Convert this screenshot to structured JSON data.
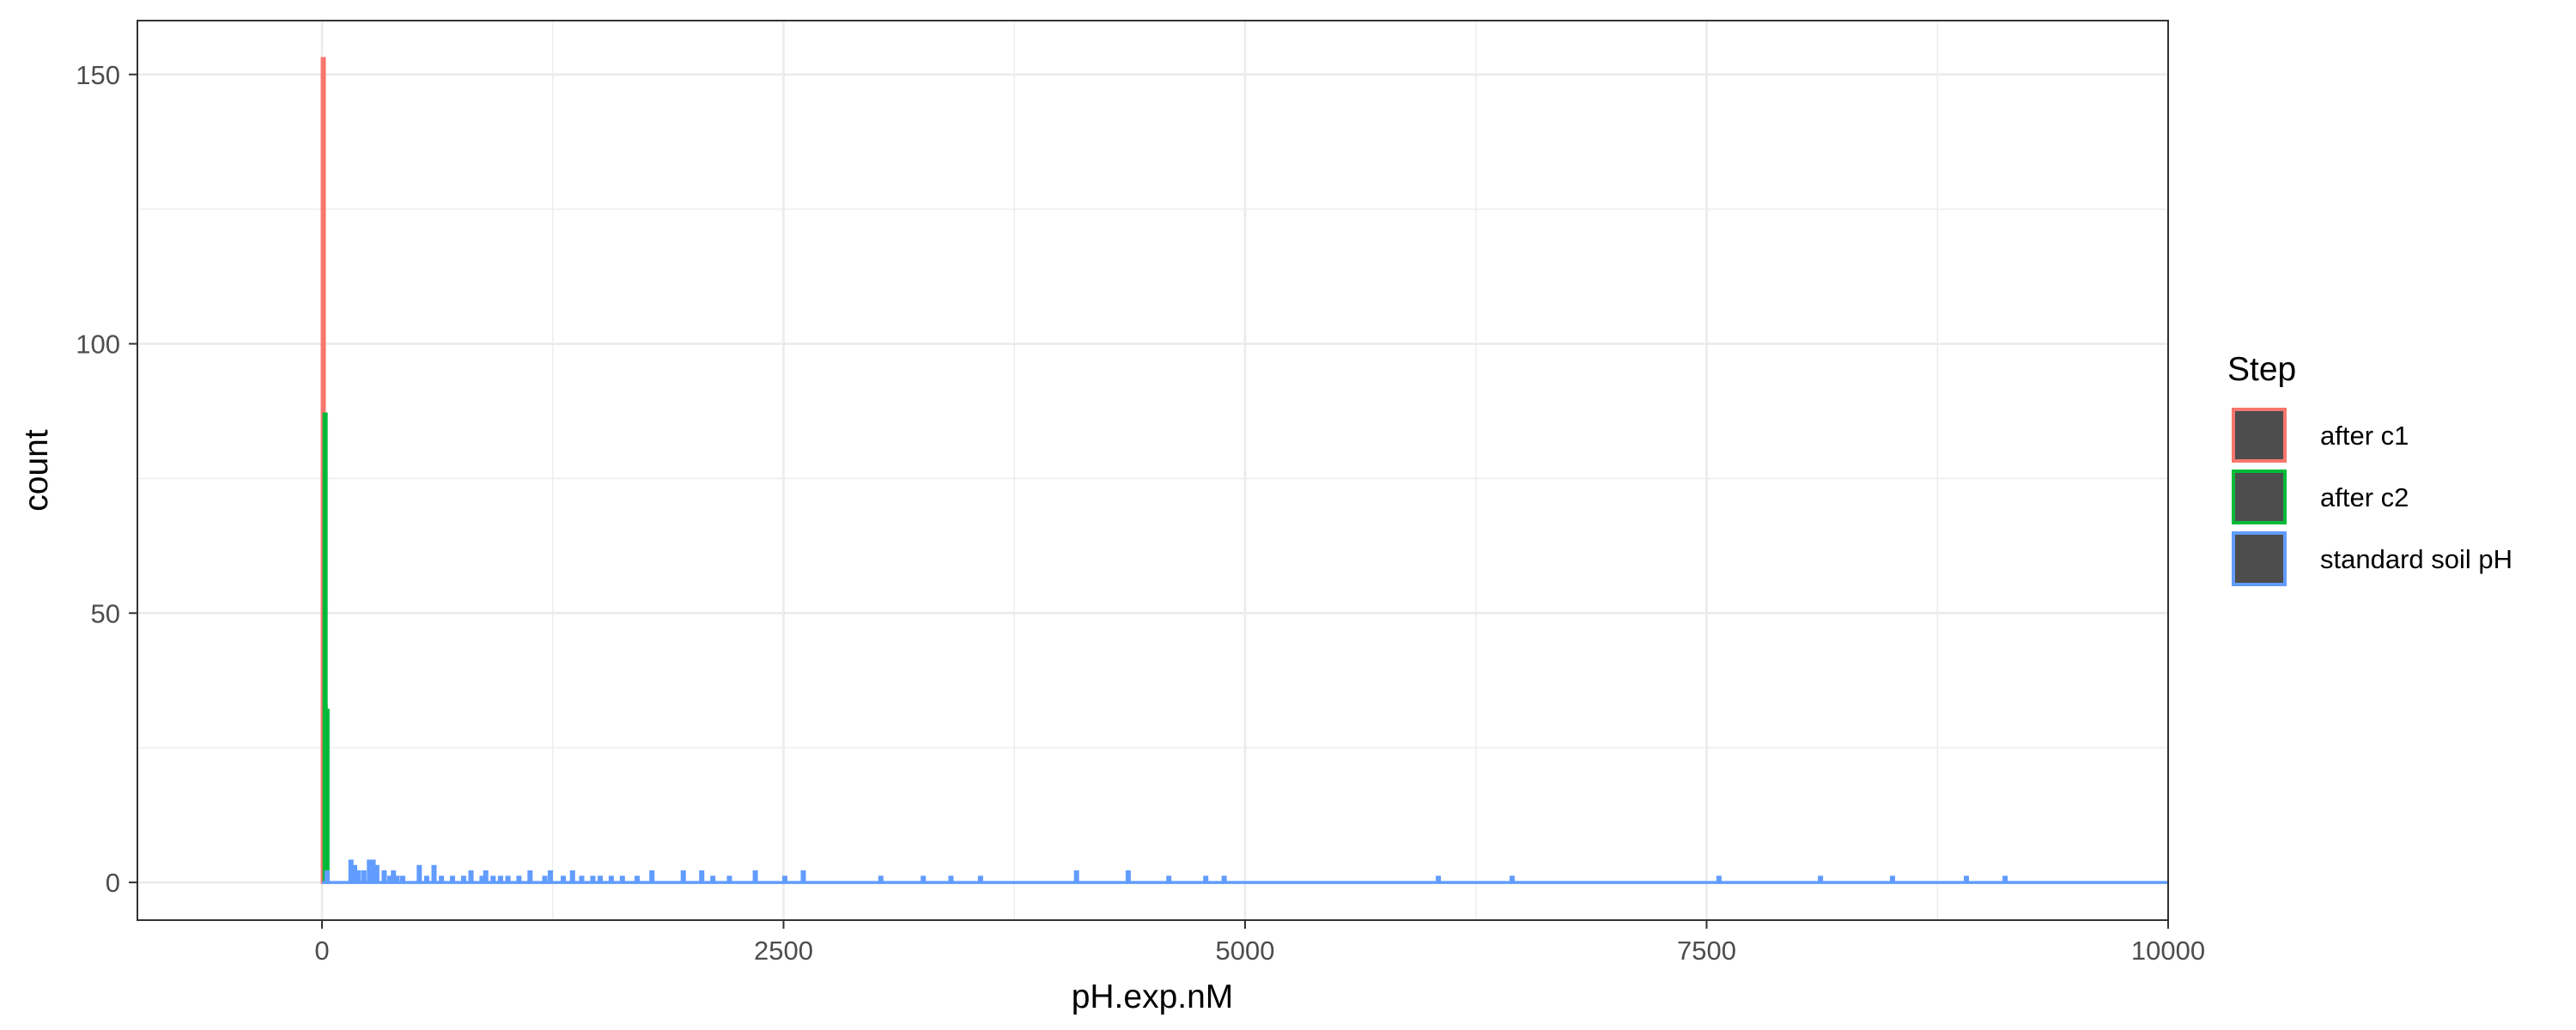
{
  "chart_data": {
    "type": "bar",
    "subtype": "histogram-outline",
    "xlabel": "pH.exp.nM",
    "ylabel": "count",
    "xlim": [
      -1000,
      10000
    ],
    "ylim": [
      -7,
      160
    ],
    "x_ticks": [
      0,
      2500,
      5000,
      7500,
      10000
    ],
    "x_tick_labels": [
      "0",
      "2500",
      "5000",
      "7500",
      "10000"
    ],
    "y_ticks": [
      0,
      50,
      100,
      150
    ],
    "y_tick_labels": [
      "0",
      "50",
      "100",
      "150"
    ],
    "grid": true,
    "legend": {
      "title": "Step",
      "position": "right"
    },
    "series": [
      {
        "name": "after c1",
        "color": "#F8766D",
        "bins": [
          [
            0,
            153
          ],
          [
            10,
            33
          ]
        ]
      },
      {
        "name": "after c2",
        "color": "#00BA38",
        "bins": [
          [
            10,
            87
          ],
          [
            20,
            32
          ]
        ]
      },
      {
        "name": "standard soil pH",
        "color": "#619CFF",
        "bins": [
          [
            20,
            2
          ],
          [
            150,
            4
          ],
          [
            170,
            3
          ],
          [
            190,
            2
          ],
          [
            220,
            2
          ],
          [
            250,
            4
          ],
          [
            270,
            4
          ],
          [
            290,
            3
          ],
          [
            330,
            2
          ],
          [
            360,
            1
          ],
          [
            380,
            2
          ],
          [
            400,
            1
          ],
          [
            430,
            1
          ],
          [
            520,
            3
          ],
          [
            560,
            1
          ],
          [
            600,
            3
          ],
          [
            640,
            1
          ],
          [
            700,
            1
          ],
          [
            760,
            1
          ],
          [
            800,
            2
          ],
          [
            860,
            1
          ],
          [
            880,
            2
          ],
          [
            920,
            1
          ],
          [
            960,
            1
          ],
          [
            1000,
            1
          ],
          [
            1060,
            1
          ],
          [
            1120,
            2
          ],
          [
            1200,
            1
          ],
          [
            1230,
            2
          ],
          [
            1300,
            1
          ],
          [
            1350,
            2
          ],
          [
            1400,
            1
          ],
          [
            1460,
            1
          ],
          [
            1500,
            1
          ],
          [
            1560,
            1
          ],
          [
            1620,
            1
          ],
          [
            1700,
            1
          ],
          [
            1780,
            2
          ],
          [
            1950,
            2
          ],
          [
            2050,
            2
          ],
          [
            2110,
            1
          ],
          [
            2200,
            1
          ],
          [
            2340,
            2
          ],
          [
            2500,
            1
          ],
          [
            2600,
            2
          ],
          [
            3020,
            1
          ],
          [
            3250,
            1
          ],
          [
            3400,
            1
          ],
          [
            3560,
            1
          ],
          [
            4080,
            2
          ],
          [
            4360,
            2
          ],
          [
            4580,
            1
          ],
          [
            4780,
            1
          ],
          [
            4880,
            1
          ],
          [
            6040,
            1
          ],
          [
            6440,
            1
          ],
          [
            7560,
            1
          ],
          [
            8110,
            1
          ],
          [
            8500,
            1
          ],
          [
            8900,
            1
          ],
          [
            9110,
            1
          ]
        ],
        "x_extent": [
          0,
          10000
        ]
      }
    ]
  }
}
